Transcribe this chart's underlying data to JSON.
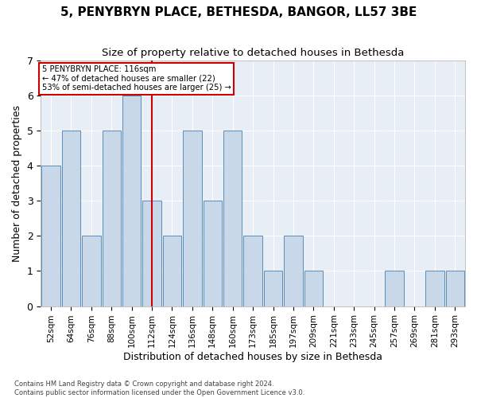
{
  "title": "5, PENYBRYN PLACE, BETHESDA, BANGOR, LL57 3BE",
  "subtitle": "Size of property relative to detached houses in Bethesda",
  "xlabel": "Distribution of detached houses by size in Bethesda",
  "ylabel": "Number of detached properties",
  "categories": [
    "52sqm",
    "64sqm",
    "76sqm",
    "88sqm",
    "100sqm",
    "112sqm",
    "124sqm",
    "136sqm",
    "148sqm",
    "160sqm",
    "173sqm",
    "185sqm",
    "197sqm",
    "209sqm",
    "221sqm",
    "233sqm",
    "245sqm",
    "257sqm",
    "269sqm",
    "281sqm",
    "293sqm"
  ],
  "values": [
    4,
    5,
    2,
    5,
    6,
    3,
    2,
    5,
    3,
    5,
    2,
    1,
    2,
    1,
    0,
    0,
    0,
    1,
    0,
    1,
    1
  ],
  "bar_color": "#c8d8e8",
  "bar_edge_color": "#5b8db8",
  "vline_x_index": 5,
  "vline_color": "#cc0000",
  "annotation_line1": "5 PENYBRYN PLACE: 116sqm",
  "annotation_line2": "← 47% of detached houses are smaller (22)",
  "annotation_line3": "53% of semi-detached houses are larger (25) →",
  "annotation_box_color": "#cc0000",
  "ylim": [
    0,
    7
  ],
  "yticks": [
    0,
    1,
    2,
    3,
    4,
    5,
    6,
    7
  ],
  "footnote1": "Contains HM Land Registry data © Crown copyright and database right 2024.",
  "footnote2": "Contains public sector information licensed under the Open Government Licence v3.0.",
  "background_color": "#e8eef5",
  "title_fontsize": 11,
  "subtitle_fontsize": 9.5,
  "tick_fontsize": 7.5,
  "ylabel_fontsize": 9,
  "xlabel_fontsize": 9
}
